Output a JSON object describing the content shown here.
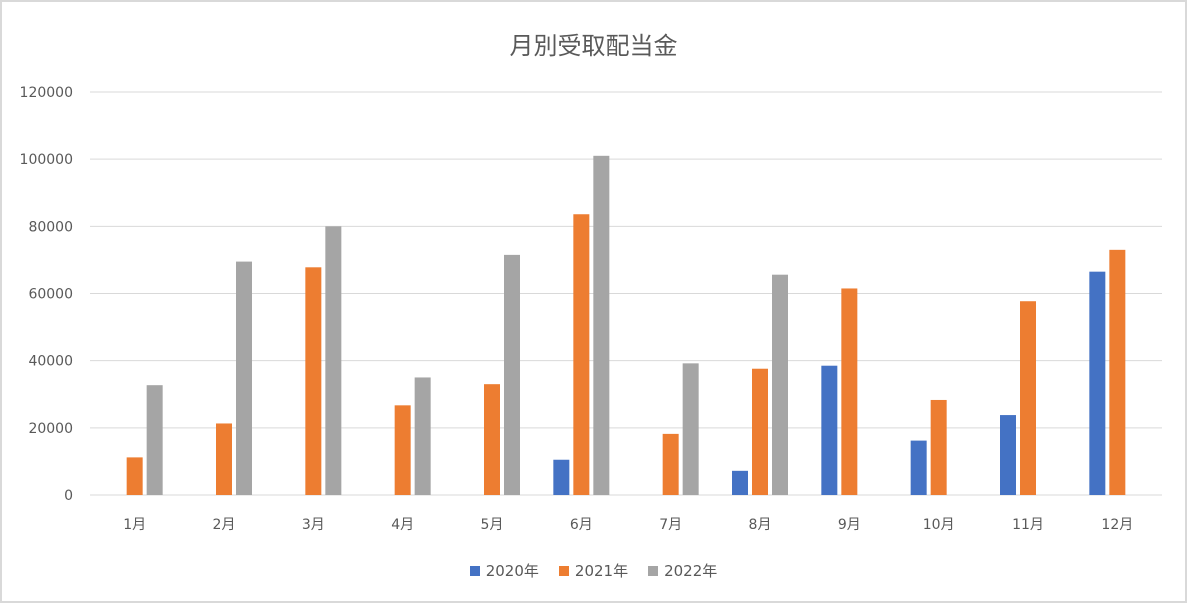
{
  "chart_data": {
    "type": "bar",
    "title": "月別受取配当金",
    "xlabel": "",
    "ylabel": "",
    "categories": [
      "1月",
      "2月",
      "3月",
      "4月",
      "5月",
      "6月",
      "7月",
      "8月",
      "9月",
      "10月",
      "11月",
      "12月"
    ],
    "series": [
      {
        "name": "2020年",
        "color": "#4472c4",
        "values": [
          0,
          0,
          0,
          0,
          0,
          10500,
          0,
          7200,
          38500,
          16200,
          23800,
          66500
        ]
      },
      {
        "name": "2021年",
        "color": "#ed7d31",
        "values": [
          11200,
          21300,
          67800,
          26700,
          33000,
          83600,
          18200,
          37600,
          61500,
          28300,
          57700,
          73000
        ]
      },
      {
        "name": "2022年",
        "color": "#a5a5a5",
        "values": [
          32700,
          69500,
          80000,
          35000,
          71500,
          101000,
          39200,
          65600,
          0,
          0,
          0,
          0
        ]
      }
    ],
    "ylim": [
      0,
      120000
    ],
    "yticks": [
      0,
      20000,
      40000,
      60000,
      80000,
      100000,
      120000
    ],
    "grid": true,
    "legend_position": "bottom"
  }
}
